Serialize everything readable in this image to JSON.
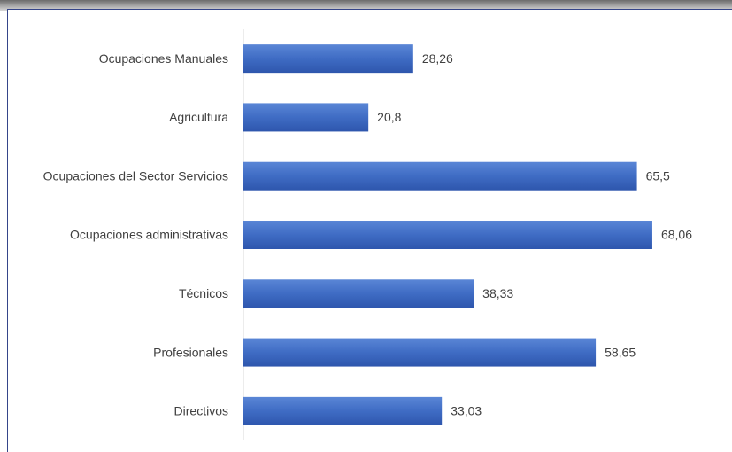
{
  "chart_data": {
    "type": "barh",
    "categories": [
      "Ocupaciones Manuales",
      "Agricultura",
      "Ocupaciones del Sector Servicios",
      "Ocupaciones administrativas",
      "Técnicos",
      "Profesionales",
      "Directivos"
    ],
    "values": [
      28.26,
      20.8,
      65.5,
      68.06,
      38.33,
      58.65,
      33.03
    ],
    "value_labels": [
      "28,26",
      "20,8",
      "65,5",
      "68,06",
      "38,33",
      "58,65",
      "33,03"
    ],
    "color": "#4472c4",
    "xlim": [
      0,
      80
    ]
  }
}
